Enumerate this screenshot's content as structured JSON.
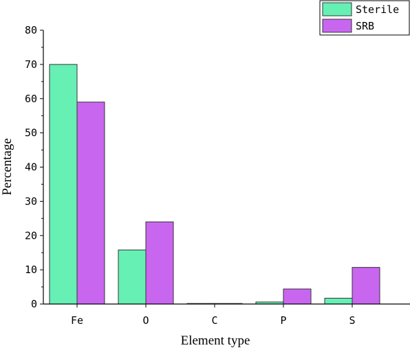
{
  "chart_data": {
    "type": "bar",
    "categories": [
      "Fe",
      "O",
      "C",
      "P",
      "S"
    ],
    "series": [
      {
        "name": "Sterile",
        "values": [
          70.0,
          15.8,
          0.1,
          0.6,
          1.7
        ],
        "color": "#66f0b4"
      },
      {
        "name": "SRB",
        "values": [
          59.0,
          24.0,
          0.0,
          4.4,
          10.7
        ],
        "color": "#c966f0"
      }
    ],
    "xlabel": "Element type",
    "ylabel": "Percentage",
    "ylim": [
      0,
      80
    ],
    "yticks": [
      0,
      10,
      20,
      30,
      40,
      50,
      60,
      70,
      80
    ],
    "grid": false,
    "legend_position": "top-right"
  }
}
